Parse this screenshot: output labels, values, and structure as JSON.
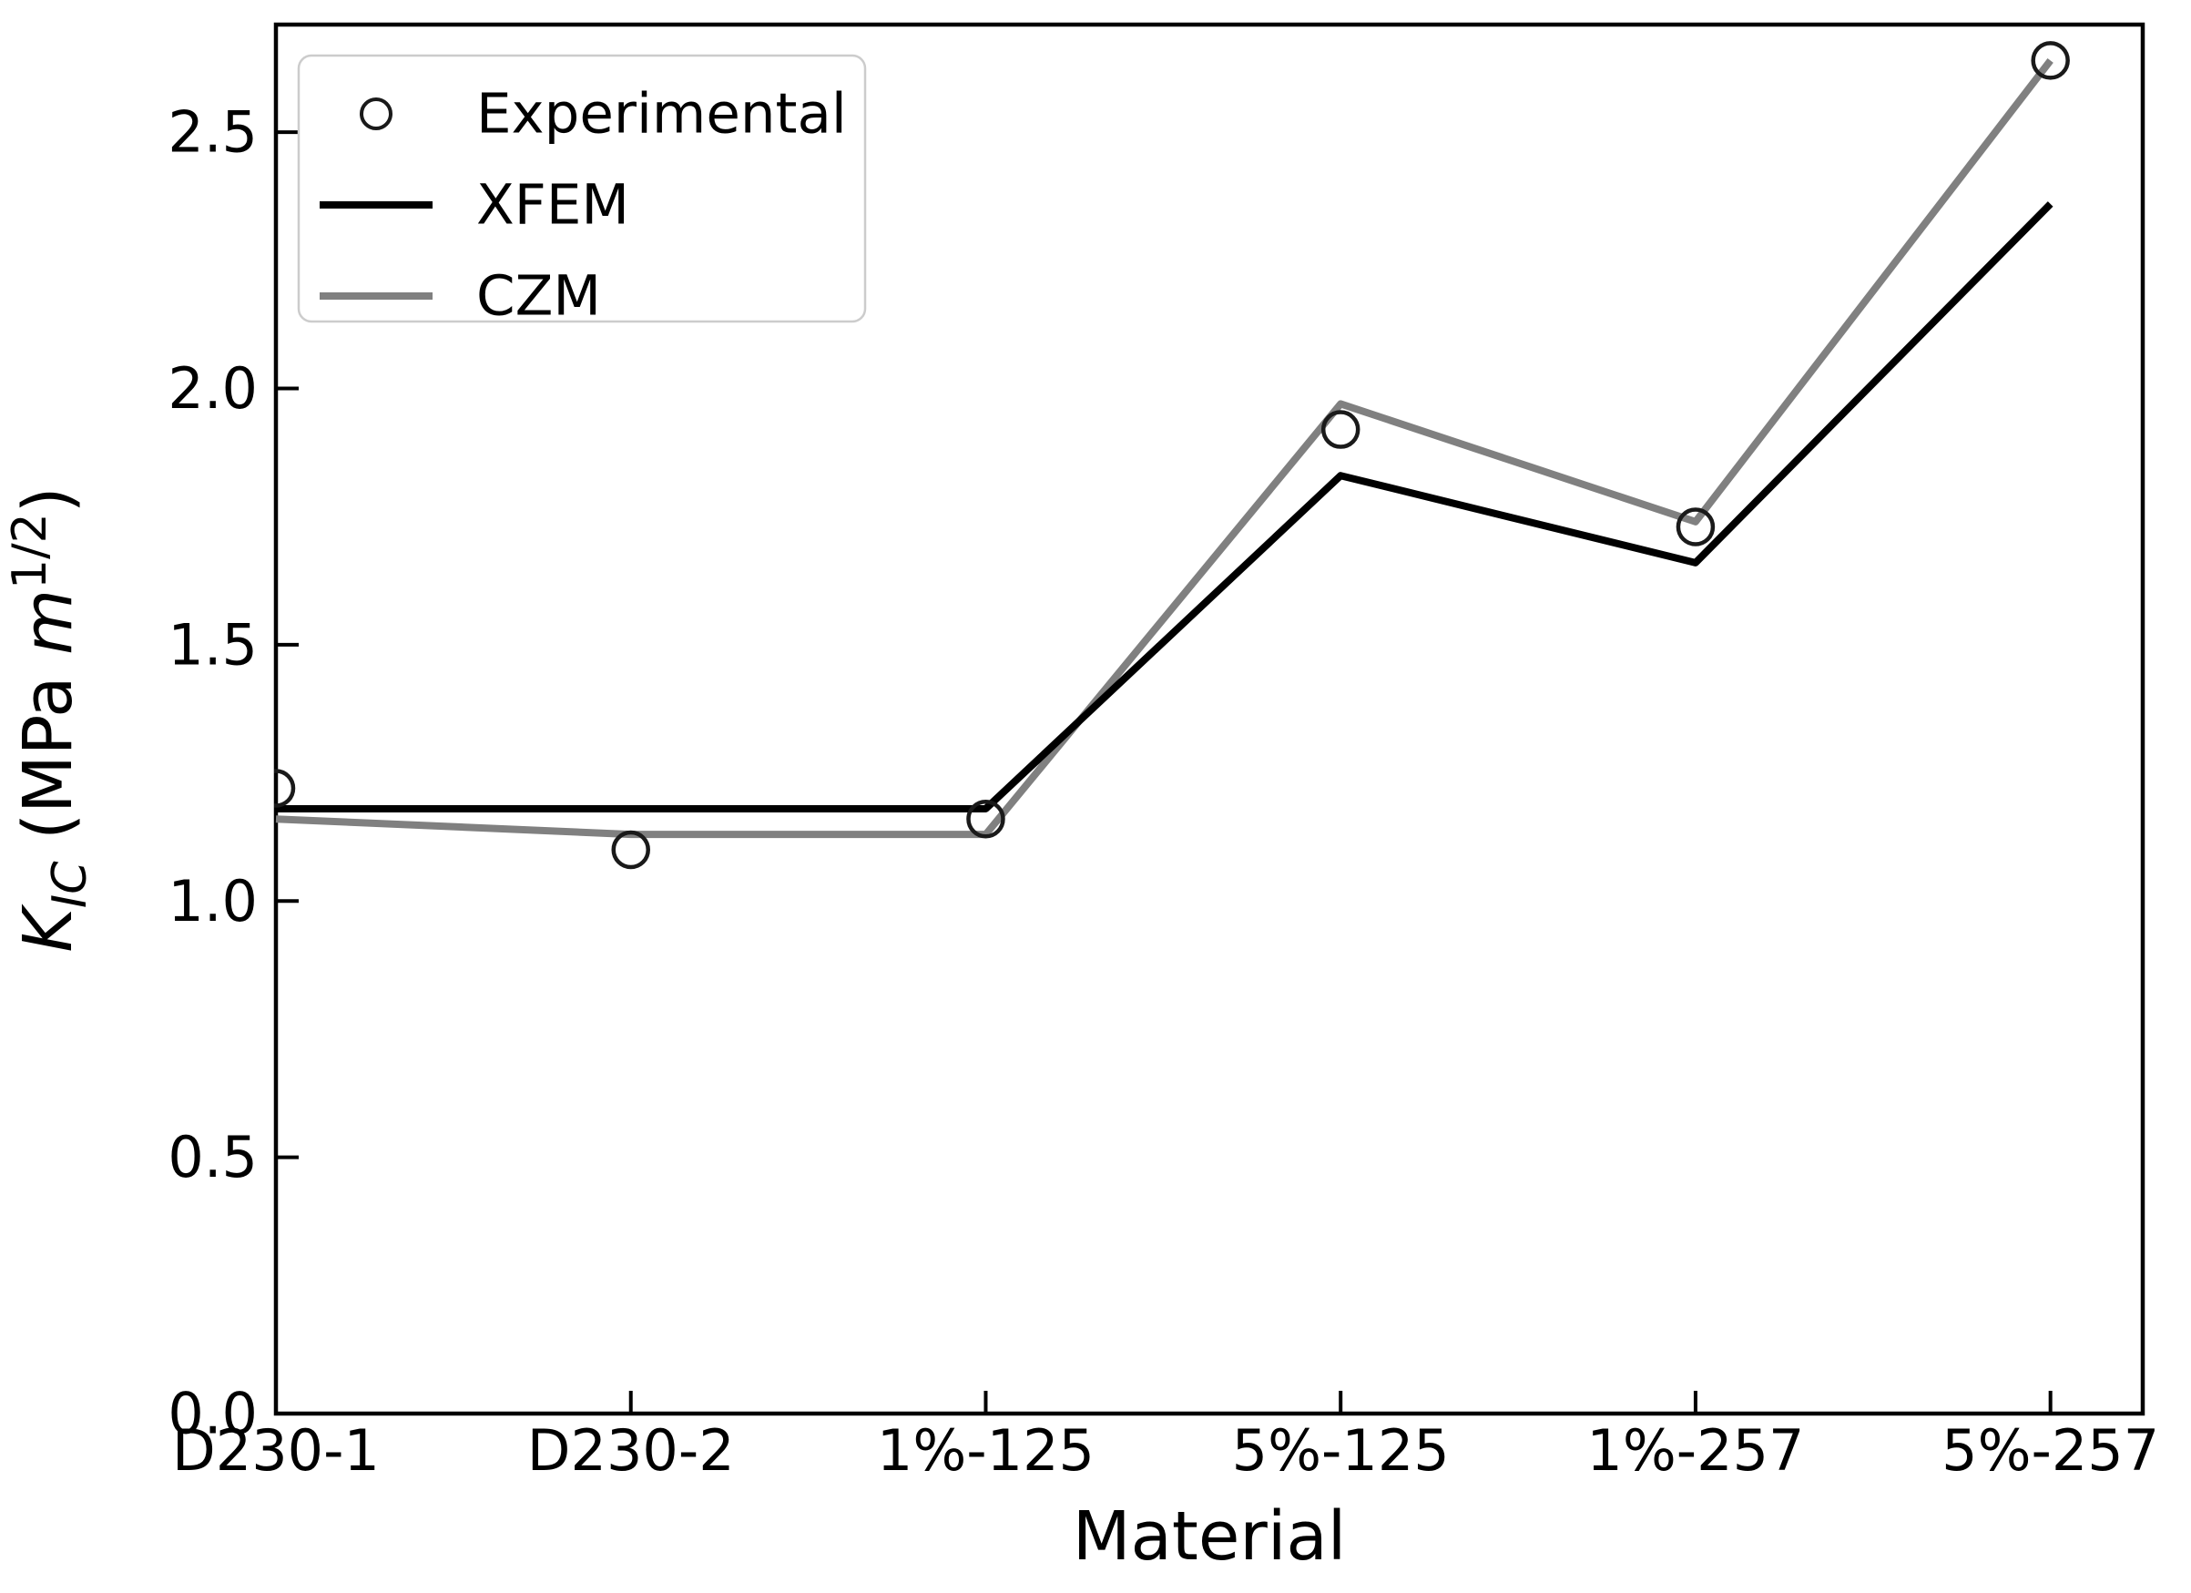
{
  "figure": {
    "background": "#ffffff",
    "axis_color": "#000000",
    "legend": {
      "position": "upper left",
      "border_color": "#cccccc",
      "items": [
        {
          "label": "Experimental",
          "glyph": "open-circle",
          "color": "#1a1a1a"
        },
        {
          "label": "XFEM",
          "glyph": "line",
          "color": "#000000"
        },
        {
          "label": "CZM",
          "glyph": "line",
          "color": "#808080"
        }
      ]
    },
    "ylabel_parts": {
      "K": "K",
      "IC": "IC",
      "mid": " (MPa ",
      "m": "m",
      "exp": "1/2",
      "end": ")"
    }
  },
  "chart_data": {
    "type": "line",
    "title": "",
    "xlabel": "Material",
    "ylabel": "K_IC (MPa m^1/2)",
    "categories": [
      "D230-1",
      "D230-2",
      "1%-125",
      "5%-125",
      "1%-257",
      "5%-257"
    ],
    "series": [
      {
        "name": "Experimental",
        "style": "scatter",
        "marker": "open-circle",
        "color": "#1a1a1a",
        "values": [
          1.22,
          1.1,
          1.16,
          1.92,
          1.73,
          2.64
        ]
      },
      {
        "name": "XFEM",
        "style": "line",
        "color": "#000000",
        "values": [
          1.18,
          1.18,
          1.18,
          1.83,
          1.66,
          2.36
        ]
      },
      {
        "name": "CZM",
        "style": "line",
        "color": "#808080",
        "values": [
          1.16,
          1.13,
          1.13,
          1.97,
          1.74,
          2.64
        ]
      }
    ],
    "yticks": [
      0.0,
      0.5,
      1.0,
      1.5,
      2.0,
      2.5
    ],
    "ylim": [
      0,
      2.71
    ],
    "xlim": [
      0,
      5.26
    ],
    "grid": false,
    "tick_direction": "in",
    "legend_position": "upper left"
  }
}
